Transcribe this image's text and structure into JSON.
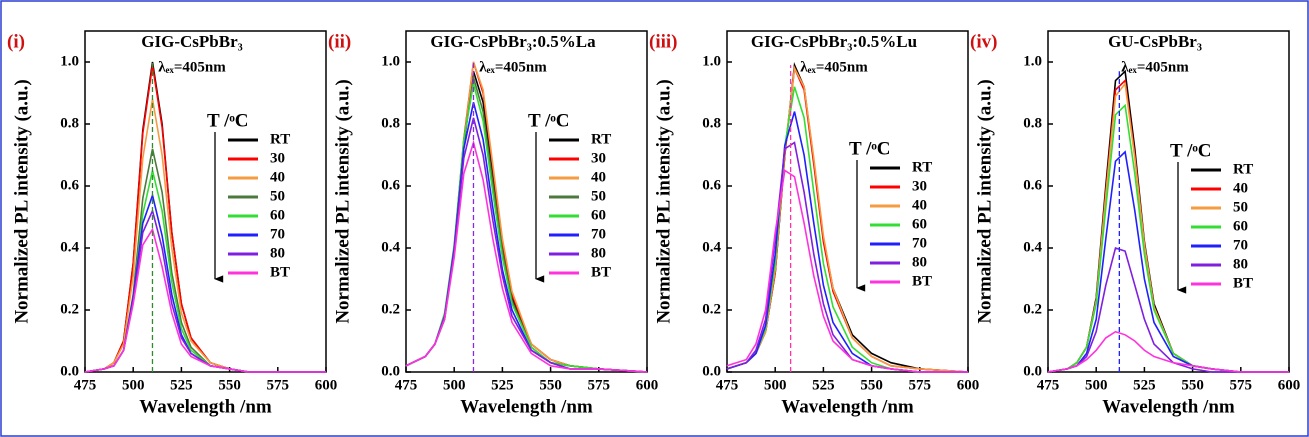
{
  "chart_data": [
    {
      "type": "line",
      "panel_label": "(i)",
      "title": "GIG-CsPbBr₃",
      "annotation": "λₑₓ=405nm",
      "legend_title": "T /ᵒC",
      "xlabel": "Wavelength /nm",
      "ylabel": "Normalized PL intensity (a.u.)",
      "xlim": [
        475,
        600
      ],
      "ylim": [
        0,
        1.1
      ],
      "xticks": [
        475,
        500,
        525,
        550,
        575,
        600
      ],
      "yticks": [
        {
          "value": 0,
          "label": "0.0"
        },
        {
          "value": 0.2,
          "label": "0.2"
        },
        {
          "value": 0.4,
          "label": "0.4"
        },
        {
          "value": 0.6,
          "label": "0.6"
        },
        {
          "value": 0.8,
          "label": "0.8"
        },
        {
          "value": 1,
          "label": "1.0"
        }
      ],
      "peak_line": {
        "x": 510,
        "color": "#2e8b2e"
      },
      "x": [
        475,
        485,
        490,
        495,
        500,
        505,
        510,
        515,
        520,
        525,
        530,
        540,
        550,
        560,
        575,
        600
      ],
      "series": [
        {
          "name": "RT",
          "color": "#000000",
          "values": [
            0,
            0.01,
            0.03,
            0.1,
            0.35,
            0.78,
            1.0,
            0.8,
            0.45,
            0.22,
            0.11,
            0.03,
            0.01,
            0,
            0,
            0
          ]
        },
        {
          "name": "30",
          "color": "#ff0000",
          "values": [
            0,
            0.01,
            0.03,
            0.1,
            0.35,
            0.77,
            0.99,
            0.79,
            0.45,
            0.22,
            0.11,
            0.03,
            0.01,
            0,
            0,
            0
          ]
        },
        {
          "name": "40",
          "color": "#f59b42",
          "values": [
            0,
            0.01,
            0.03,
            0.09,
            0.31,
            0.69,
            0.88,
            0.7,
            0.4,
            0.19,
            0.1,
            0.03,
            0.01,
            0,
            0,
            0
          ]
        },
        {
          "name": "50",
          "color": "#4b7a3c",
          "values": [
            0,
            0.01,
            0.02,
            0.07,
            0.25,
            0.56,
            0.72,
            0.58,
            0.32,
            0.16,
            0.08,
            0.02,
            0.01,
            0,
            0,
            0
          ]
        },
        {
          "name": "60",
          "color": "#33dd33",
          "values": [
            0,
            0.01,
            0.02,
            0.07,
            0.23,
            0.51,
            0.65,
            0.52,
            0.29,
            0.14,
            0.07,
            0.02,
            0.01,
            0,
            0,
            0
          ]
        },
        {
          "name": "70",
          "color": "#1f1fff",
          "values": [
            0,
            0.01,
            0.02,
            0.07,
            0.24,
            0.48,
            0.57,
            0.44,
            0.25,
            0.12,
            0.06,
            0.02,
            0.01,
            0,
            0,
            0
          ]
        },
        {
          "name": "80",
          "color": "#7f1fe0",
          "values": [
            0,
            0.01,
            0.02,
            0.07,
            0.23,
            0.45,
            0.52,
            0.4,
            0.22,
            0.11,
            0.06,
            0.02,
            0.01,
            0,
            0,
            0
          ]
        },
        {
          "name": "BT",
          "color": "#ff33dd",
          "values": [
            0,
            0.01,
            0.02,
            0.07,
            0.22,
            0.41,
            0.46,
            0.34,
            0.19,
            0.09,
            0.05,
            0.02,
            0.01,
            0,
            0,
            0
          ]
        }
      ]
    },
    {
      "type": "line",
      "panel_label": "(ii)",
      "title": "GIG-CsPbBr₃:0.5%La",
      "annotation": "λₑₓ=405nm",
      "legend_title": "T /ᵒC",
      "xlabel": "Wavelength /nm",
      "ylabel": "Normalized PL intensity (a.u.)",
      "xlim": [
        475,
        600
      ],
      "ylim": [
        0,
        1.1
      ],
      "xticks": [
        475,
        500,
        525,
        550,
        575,
        600
      ],
      "yticks": [
        {
          "value": 0,
          "label": "0.0"
        },
        {
          "value": 0.2,
          "label": "0.2"
        },
        {
          "value": 0.4,
          "label": "0.4"
        },
        {
          "value": 0.6,
          "label": "0.6"
        },
        {
          "value": 0.8,
          "label": "0.8"
        },
        {
          "value": 1,
          "label": "1.0"
        }
      ],
      "peak_line": {
        "x": 510,
        "color": "#8a2be2"
      },
      "x": [
        475,
        485,
        490,
        495,
        500,
        505,
        510,
        515,
        520,
        525,
        530,
        540,
        550,
        560,
        575,
        600
      ],
      "series": [
        {
          "name": "RT",
          "color": "#000000",
          "values": [
            0.02,
            0.05,
            0.09,
            0.17,
            0.39,
            0.73,
            0.97,
            0.87,
            0.64,
            0.41,
            0.24,
            0.09,
            0.04,
            0.02,
            0.01,
            0
          ]
        },
        {
          "name": "30",
          "color": "#ff0000",
          "values": [
            0.02,
            0.05,
            0.09,
            0.18,
            0.4,
            0.75,
            1.0,
            0.9,
            0.66,
            0.42,
            0.25,
            0.09,
            0.04,
            0.02,
            0.01,
            0
          ]
        },
        {
          "name": "40",
          "color": "#f59b42",
          "values": [
            0.02,
            0.05,
            0.09,
            0.18,
            0.39,
            0.74,
            1.0,
            0.91,
            0.67,
            0.43,
            0.26,
            0.09,
            0.04,
            0.02,
            0.01,
            0
          ]
        },
        {
          "name": "50",
          "color": "#4b7a3c",
          "values": [
            0.02,
            0.05,
            0.09,
            0.18,
            0.4,
            0.74,
            0.95,
            0.84,
            0.61,
            0.39,
            0.23,
            0.08,
            0.03,
            0.02,
            0.01,
            0
          ]
        },
        {
          "name": "60",
          "color": "#33dd33",
          "values": [
            0.02,
            0.05,
            0.09,
            0.19,
            0.41,
            0.75,
            0.93,
            0.81,
            0.58,
            0.37,
            0.22,
            0.08,
            0.03,
            0.02,
            0.01,
            0
          ]
        },
        {
          "name": "70",
          "color": "#1f1fff",
          "values": [
            0.02,
            0.05,
            0.09,
            0.18,
            0.4,
            0.72,
            0.87,
            0.75,
            0.53,
            0.33,
            0.2,
            0.07,
            0.03,
            0.01,
            0.01,
            0
          ]
        },
        {
          "name": "80",
          "color": "#7f1fe0",
          "values": [
            0.02,
            0.05,
            0.09,
            0.18,
            0.39,
            0.69,
            0.82,
            0.7,
            0.49,
            0.31,
            0.18,
            0.07,
            0.03,
            0.01,
            0.01,
            0
          ]
        },
        {
          "name": "BT",
          "color": "#ff33dd",
          "values": [
            0.02,
            0.05,
            0.09,
            0.17,
            0.37,
            0.64,
            0.74,
            0.62,
            0.43,
            0.27,
            0.16,
            0.06,
            0.02,
            0.01,
            0.01,
            0
          ]
        }
      ]
    },
    {
      "type": "line",
      "panel_label": "(iii)",
      "title": "GIG-CsPbBr₃:0.5%Lu",
      "annotation": "λₑₓ=405nm",
      "legend_title": "T /ᵒC",
      "xlabel": "Wavelength /nm",
      "ylabel": "Normalized PL intensity (a.u.)",
      "xlim": [
        475,
        600
      ],
      "ylim": [
        0,
        1.1
      ],
      "xticks": [
        475,
        500,
        525,
        550,
        575,
        600
      ],
      "yticks": [
        {
          "value": 0,
          "label": "0.0"
        },
        {
          "value": 0.2,
          "label": "0.2"
        },
        {
          "value": 0.4,
          "label": "0.4"
        },
        {
          "value": 0.6,
          "label": "0.6"
        },
        {
          "value": 0.8,
          "label": "0.8"
        },
        {
          "value": 1,
          "label": "1.0"
        }
      ],
      "peak_line": {
        "x": 508,
        "color": "#ff33aa"
      },
      "x": [
        475,
        485,
        490,
        495,
        500,
        505,
        510,
        515,
        520,
        525,
        530,
        540,
        550,
        560,
        575,
        600
      ],
      "series": [
        {
          "name": "RT",
          "color": "#000000",
          "values": [
            0.01,
            0.03,
            0.06,
            0.13,
            0.32,
            0.7,
            0.99,
            0.92,
            0.68,
            0.43,
            0.27,
            0.12,
            0.06,
            0.03,
            0.01,
            0
          ]
        },
        {
          "name": "30",
          "color": "#ff0000",
          "values": [
            0.01,
            0.03,
            0.06,
            0.13,
            0.32,
            0.7,
            0.98,
            0.91,
            0.67,
            0.42,
            0.26,
            0.11,
            0.05,
            0.02,
            0.01,
            0
          ]
        },
        {
          "name": "40",
          "color": "#f59b42",
          "values": [
            0.01,
            0.03,
            0.06,
            0.13,
            0.33,
            0.71,
            0.98,
            0.92,
            0.69,
            0.44,
            0.27,
            0.11,
            0.05,
            0.02,
            0.01,
            0
          ]
        },
        {
          "name": "60",
          "color": "#33dd33",
          "values": [
            0.01,
            0.03,
            0.06,
            0.14,
            0.35,
            0.73,
            0.92,
            0.82,
            0.58,
            0.35,
            0.21,
            0.08,
            0.03,
            0.01,
            0,
            0
          ]
        },
        {
          "name": "70",
          "color": "#1f1fff",
          "values": [
            0.01,
            0.03,
            0.06,
            0.15,
            0.38,
            0.73,
            0.84,
            0.7,
            0.48,
            0.28,
            0.16,
            0.06,
            0.02,
            0.01,
            0,
            0
          ]
        },
        {
          "name": "80",
          "color": "#7f1fe0",
          "values": [
            0.01,
            0.03,
            0.07,
            0.17,
            0.43,
            0.72,
            0.74,
            0.58,
            0.38,
            0.22,
            0.12,
            0.04,
            0.02,
            0.01,
            0,
            0
          ]
        },
        {
          "name": "BT",
          "color": "#ff33dd",
          "values": [
            0.02,
            0.04,
            0.09,
            0.2,
            0.45,
            0.65,
            0.63,
            0.48,
            0.31,
            0.18,
            0.1,
            0.04,
            0.02,
            0.01,
            0,
            0
          ]
        }
      ]
    },
    {
      "type": "line",
      "panel_label": "(iv)",
      "title": "GU-CsPbBr₃",
      "annotation": "λₑₓ=405nm",
      "legend_title": "T /ᵒC",
      "xlabel": "Wavelength /nm",
      "ylabel": "Normalized PL intensity (a.u.)",
      "xlim": [
        475,
        600
      ],
      "ylim": [
        0,
        1.1
      ],
      "xticks": [
        475,
        500,
        525,
        550,
        575,
        600
      ],
      "yticks": [
        {
          "value": 0,
          "label": "0.0"
        },
        {
          "value": 0.2,
          "label": "0.2"
        },
        {
          "value": 0.4,
          "label": "0.4"
        },
        {
          "value": 0.6,
          "label": "0.6"
        },
        {
          "value": 0.8,
          "label": "0.8"
        },
        {
          "value": 1,
          "label": "1.0"
        }
      ],
      "peak_line": {
        "x": 512,
        "color": "#1f1fff"
      },
      "x": [
        475,
        485,
        490,
        495,
        500,
        505,
        510,
        515,
        520,
        525,
        530,
        540,
        550,
        560,
        575,
        600
      ],
      "series": [
        {
          "name": "RT",
          "color": "#000000",
          "values": [
            0,
            0.01,
            0.03,
            0.08,
            0.24,
            0.6,
            0.94,
            0.97,
            0.72,
            0.42,
            0.22,
            0.06,
            0.02,
            0.01,
            0,
            0
          ]
        },
        {
          "name": "40",
          "color": "#ff0000",
          "values": [
            0,
            0.01,
            0.03,
            0.08,
            0.23,
            0.58,
            0.91,
            0.94,
            0.7,
            0.41,
            0.21,
            0.06,
            0.02,
            0.01,
            0,
            0
          ]
        },
        {
          "name": "50",
          "color": "#f59b42",
          "values": [
            0,
            0.01,
            0.03,
            0.08,
            0.23,
            0.57,
            0.89,
            0.93,
            0.69,
            0.41,
            0.21,
            0.06,
            0.02,
            0.01,
            0,
            0
          ]
        },
        {
          "name": "60",
          "color": "#33dd33",
          "values": [
            0,
            0.01,
            0.03,
            0.08,
            0.22,
            0.53,
            0.83,
            0.86,
            0.64,
            0.38,
            0.2,
            0.06,
            0.02,
            0.01,
            0,
            0
          ]
        },
        {
          "name": "70",
          "color": "#1f1fff",
          "values": [
            0,
            0.01,
            0.02,
            0.06,
            0.17,
            0.43,
            0.68,
            0.71,
            0.52,
            0.3,
            0.16,
            0.05,
            0.02,
            0.01,
            0,
            0
          ]
        },
        {
          "name": "80",
          "color": "#7f1fe0",
          "values": [
            0,
            0.01,
            0.02,
            0.05,
            0.13,
            0.28,
            0.4,
            0.39,
            0.28,
            0.17,
            0.09,
            0.03,
            0.01,
            0,
            0,
            0
          ]
        },
        {
          "name": "BT",
          "color": "#ff33dd",
          "values": [
            0,
            0.01,
            0.02,
            0.04,
            0.07,
            0.11,
            0.13,
            0.12,
            0.1,
            0.07,
            0.05,
            0.03,
            0.02,
            0.01,
            0,
            0
          ]
        }
      ]
    }
  ]
}
